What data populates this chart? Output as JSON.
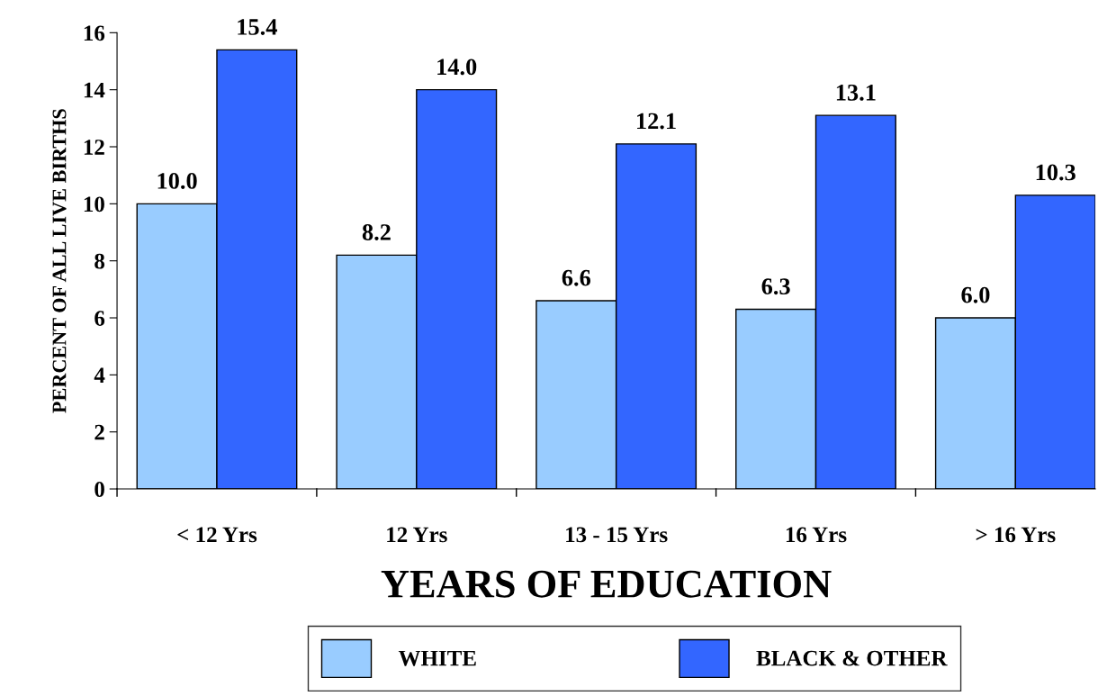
{
  "chart_data": {
    "type": "bar",
    "xlabel": "YEARS OF EDUCATION",
    "ylabel": "PERCENT OF ALL LIVE BIRTHS",
    "categories": [
      "< 12 Yrs",
      "12 Yrs",
      "13 - 15 Yrs",
      "16 Yrs",
      "> 16 Yrs"
    ],
    "series": [
      {
        "name": "WHITE",
        "color": "#99ccff",
        "values": [
          10.0,
          8.2,
          6.6,
          6.3,
          6.0
        ],
        "value_labels": [
          "10.0",
          "8.2",
          "6.6",
          "6.3",
          "6.0"
        ]
      },
      {
        "name": "BLACK & OTHER",
        "color": "#3366ff",
        "values": [
          15.4,
          14.0,
          12.1,
          13.1,
          10.3
        ],
        "value_labels": [
          "15.4",
          "14.0",
          "12.1",
          "13.1",
          "10.3"
        ]
      }
    ],
    "ylim": [
      0,
      16
    ],
    "yticks": [
      0,
      2,
      4,
      6,
      8,
      10,
      12,
      14,
      16
    ],
    "grid": false,
    "legend": "bottom"
  }
}
